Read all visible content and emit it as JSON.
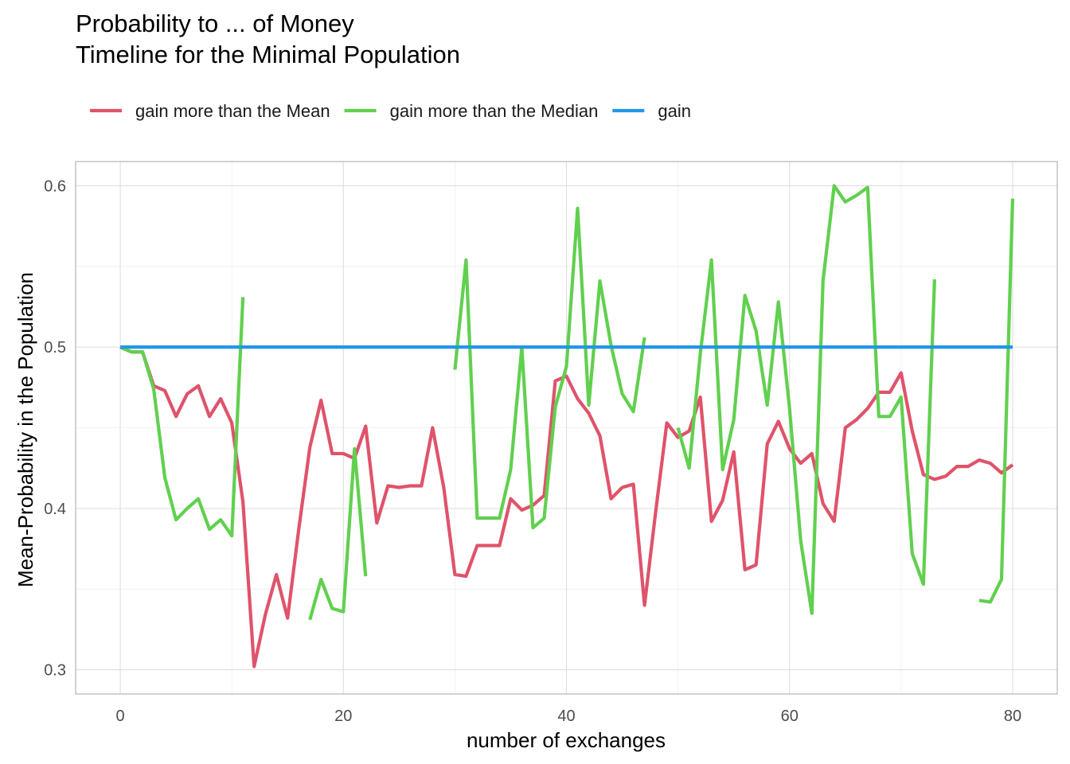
{
  "chart_data": {
    "type": "line",
    "title": "Probability to ... of Money",
    "subtitle": "Timeline for the Minimal Population",
    "xlabel": "number of exchanges",
    "ylabel": "Mean-Probability in the Population",
    "xlim": [
      -4,
      84
    ],
    "ylim": [
      0.285,
      0.615
    ],
    "x_ticks": [
      0,
      20,
      40,
      60,
      80
    ],
    "y_ticks": [
      0.3,
      0.4,
      0.5,
      0.6
    ],
    "x_tick_labels": [
      "0",
      "20",
      "40",
      "60",
      "80"
    ],
    "y_tick_labels": [
      "0.3",
      "0.4",
      "0.5",
      "0.6"
    ],
    "grid": true,
    "legend_position": "top",
    "series": [
      {
        "name": "gain more than the Mean",
        "color": "#DF536B",
        "x": [
          0,
          1,
          2,
          3,
          4,
          5,
          6,
          7,
          8,
          9,
          10,
          11,
          12,
          13,
          14,
          15,
          16,
          17,
          18,
          19,
          20,
          21,
          22,
          23,
          24,
          25,
          26,
          27,
          28,
          29,
          30,
          31,
          32,
          33,
          34,
          35,
          36,
          37,
          38,
          39,
          40,
          41,
          42,
          43,
          44,
          45,
          46,
          47,
          48,
          49,
          50,
          51,
          52,
          53,
          54,
          55,
          56,
          57,
          58,
          59,
          60,
          61,
          62,
          63,
          64,
          65,
          66,
          67,
          68,
          69,
          70,
          71,
          72,
          73,
          74,
          75,
          76,
          77,
          78,
          79,
          80
        ],
        "y": [
          0.5,
          0.497,
          0.497,
          0.476,
          0.473,
          0.457,
          0.471,
          0.476,
          0.457,
          0.468,
          0.453,
          0.404,
          0.302,
          0.334,
          0.359,
          0.332,
          0.387,
          0.438,
          0.467,
          0.434,
          0.434,
          0.431,
          0.451,
          0.391,
          0.414,
          0.413,
          0.414,
          0.414,
          0.45,
          0.413,
          0.359,
          0.358,
          0.377,
          0.377,
          0.377,
          0.406,
          0.399,
          0.402,
          0.408,
          0.479,
          0.482,
          0.468,
          0.459,
          0.445,
          0.406,
          0.413,
          0.415,
          0.34,
          0.398,
          0.453,
          0.444,
          0.448,
          0.469,
          0.392,
          0.405,
          0.435,
          0.362,
          0.365,
          0.44,
          0.454,
          0.437,
          0.428,
          0.434,
          0.403,
          0.392,
          0.45,
          0.455,
          0.462,
          0.472,
          0.472,
          0.484,
          0.448,
          0.421,
          0.418,
          0.42,
          0.426,
          0.426,
          0.43,
          0.428,
          0.422,
          0.427
        ]
      },
      {
        "name": "gain more than the Median",
        "color": "#61D04F",
        "x": [
          0,
          1,
          2,
          3,
          4,
          5,
          6,
          7,
          8,
          9,
          10,
          11,
          12,
          13,
          14,
          15,
          16,
          17,
          18,
          19,
          20,
          21,
          22,
          23,
          24,
          25,
          26,
          27,
          28,
          29,
          30,
          31,
          32,
          33,
          34,
          35,
          36,
          37,
          38,
          39,
          40,
          41,
          42,
          43,
          44,
          45,
          46,
          47,
          48,
          49,
          50,
          51,
          52,
          53,
          54,
          55,
          56,
          57,
          58,
          59,
          60,
          61,
          62,
          63,
          64,
          65,
          66,
          67,
          68,
          69,
          70,
          71,
          72,
          73,
          74,
          75,
          76,
          77,
          78,
          79,
          80
        ],
        "y": [
          0.5,
          0.497,
          0.497,
          0.474,
          0.419,
          0.393,
          0.4,
          0.406,
          0.387,
          0.393,
          0.383,
          0.531,
          null,
          null,
          null,
          null,
          null,
          0.331,
          0.356,
          0.338,
          0.336,
          0.437,
          0.358,
          null,
          null,
          null,
          null,
          null,
          null,
          null,
          0.486,
          0.554,
          0.394,
          0.394,
          0.394,
          0.424,
          0.5,
          0.388,
          0.394,
          0.463,
          0.488,
          0.586,
          0.464,
          0.541,
          0.501,
          0.471,
          0.46,
          0.506,
          null,
          null,
          0.45,
          0.425,
          0.496,
          0.554,
          0.424,
          0.455,
          0.532,
          0.51,
          0.464,
          0.528,
          0.462,
          0.38,
          0.335,
          0.541,
          0.6,
          0.59,
          0.594,
          0.599,
          0.457,
          0.457,
          0.469,
          0.372,
          0.353,
          0.542,
          null,
          null,
          null,
          0.343,
          0.342,
          0.356,
          0.592
        ]
      },
      {
        "name": "gain",
        "color": "#2297E6",
        "x": [
          0,
          80
        ],
        "y": [
          0.5,
          0.5
        ]
      }
    ]
  }
}
